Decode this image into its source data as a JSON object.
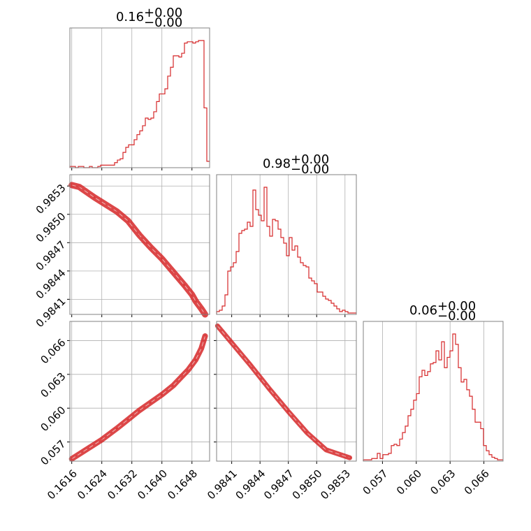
{
  "chart_data": {
    "type": "corner",
    "color": "#d62728",
    "grid": true,
    "panels": [
      {
        "id": "hist-0",
        "type": "histogram",
        "title": {
          "value": "0.16",
          "plus": "+0.00",
          "minus": "−0.00"
        },
        "xlim": [
          0.16155,
          0.16527
        ],
        "bins_x": [
          0.16155,
          0.16527
        ],
        "counts": [
          1,
          1,
          0,
          1,
          1,
          0,
          0,
          1,
          0,
          0,
          1,
          2,
          2,
          2,
          2,
          2,
          4,
          6,
          7,
          12,
          16,
          18,
          18,
          22,
          26,
          29,
          33,
          39,
          38,
          39,
          44,
          52,
          58,
          58,
          62,
          72,
          79,
          88,
          88,
          87,
          90,
          98,
          99,
          99,
          98,
          99,
          100,
          100,
          47,
          5
        ]
      },
      {
        "id": "scatter-1-0",
        "type": "scatter",
        "xlim": [
          0.16155,
          0.16527
        ],
        "ylim": [
          0.98394,
          0.98542
        ],
        "x_ticks": [
          0.1616,
          0.1624,
          0.1632,
          0.164,
          0.1648
        ],
        "y_ticks": [
          0.9841,
          0.9844,
          0.9847,
          0.985,
          0.9853
        ],
        "y_tick_labels": [
          "0.9841",
          "0.9844",
          "0.9847",
          "0.9850",
          "0.9853"
        ],
        "x": [
          0.1616,
          0.1618,
          0.1622,
          0.1628,
          0.1631,
          0.1634,
          0.1637,
          0.164,
          0.1643,
          0.1646,
          0.1648,
          0.1649,
          0.16505,
          0.16515
        ],
        "y": [
          0.98531,
          0.98529,
          0.98518,
          0.98503,
          0.98493,
          0.98478,
          0.98465,
          0.98453,
          0.98439,
          0.98425,
          0.98415,
          0.98408,
          0.984,
          0.98394
        ]
      },
      {
        "id": "hist-1",
        "type": "histogram",
        "title": {
          "value": "0.98",
          "plus": "+0.00",
          "minus": "−0.00"
        },
        "xlim": [
          0.98394,
          0.98542
        ],
        "x_ticks": [
          0.9841,
          0.9844,
          0.9847,
          0.985,
          0.9853
        ],
        "counts": [
          2,
          3,
          6,
          14,
          31,
          34,
          37,
          45,
          58,
          60,
          61,
          66,
          63,
          89,
          75,
          71,
          67,
          91,
          63,
          56,
          68,
          67,
          61,
          55,
          51,
          42,
          55,
          46,
          49,
          41,
          37,
          35,
          34,
          26,
          24,
          22,
          16,
          16,
          13,
          11,
          10,
          8,
          6,
          4,
          2,
          3,
          2,
          1,
          1,
          1
        ]
      },
      {
        "id": "scatter-2-0",
        "type": "scatter",
        "xlim": [
          0.16155,
          0.16527
        ],
        "ylim": [
          0.0553,
          0.0677
        ],
        "x_ticks": [
          0.1616,
          0.1624,
          0.1632,
          0.164,
          0.1648
        ],
        "x_tick_labels": [
          "0.1616",
          "0.1624",
          "0.1632",
          "0.1640",
          "0.1648"
        ],
        "y_ticks": [
          0.057,
          0.06,
          0.063,
          0.066
        ],
        "y_tick_labels": [
          "0.057",
          "0.060",
          "0.063",
          "0.066"
        ],
        "x": [
          0.1616,
          0.1624,
          0.1628,
          0.1631,
          0.1634,
          0.1637,
          0.164,
          0.1643,
          0.1645,
          0.1647,
          0.1649,
          0.16505,
          0.16515
        ],
        "y": [
          0.0555,
          0.0572,
          0.0582,
          0.059,
          0.0598,
          0.0605,
          0.0612,
          0.062,
          0.0627,
          0.0634,
          0.0643,
          0.0653,
          0.0664
        ]
      },
      {
        "id": "scatter-2-1",
        "type": "scatter",
        "xlim": [
          0.98394,
          0.98542
        ],
        "ylim": [
          0.0553,
          0.0677
        ],
        "x_ticks": [
          0.9841,
          0.9844,
          0.9847,
          0.985,
          0.9853
        ],
        "x_tick_labels": [
          "0.9841",
          "0.9844",
          "0.9847",
          "0.9850",
          "0.9853"
        ],
        "x": [
          0.98395,
          0.9841,
          0.9843,
          0.9845,
          0.9847,
          0.9849,
          0.9851,
          0.98535
        ],
        "y": [
          0.0673,
          0.0658,
          0.0638,
          0.0617,
          0.0597,
          0.0578,
          0.0563,
          0.0556
        ]
      },
      {
        "id": "hist-2",
        "type": "histogram",
        "title": {
          "value": "0.06",
          "plus": "+0.00",
          "minus": "−0.00"
        },
        "xlim": [
          0.0553,
          0.0677
        ],
        "x_ticks": [
          0.057,
          0.06,
          0.063,
          0.066
        ],
        "x_tick_labels": [
          "0.057",
          "0.060",
          "0.063",
          "0.066"
        ],
        "counts": [
          1,
          1,
          1,
          2,
          2,
          6,
          2,
          5,
          5,
          6,
          12,
          13,
          12,
          17,
          22,
          27,
          35,
          40,
          47,
          52,
          65,
          70,
          66,
          69,
          75,
          76,
          85,
          78,
          92,
          72,
          80,
          85,
          98,
          90,
          72,
          61,
          63,
          55,
          50,
          40,
          30,
          30,
          25,
          12,
          8,
          5,
          3,
          2,
          1,
          1
        ]
      }
    ]
  }
}
